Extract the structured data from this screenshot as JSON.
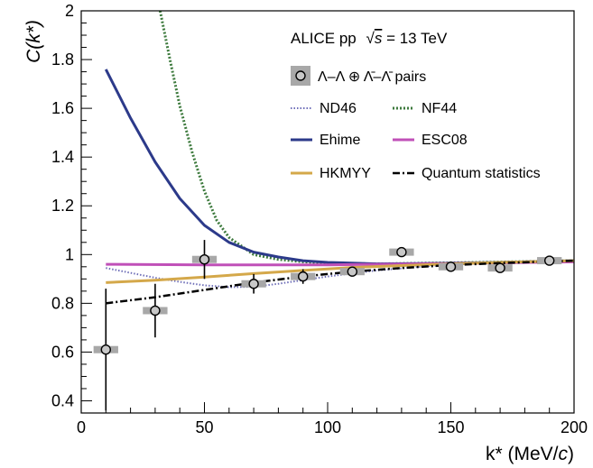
{
  "chart_data": {
    "type": "line",
    "title": "",
    "xlabel_main": "k* (MeV/",
    "xlabel_italic": "c",
    "xlabel_end": ")",
    "ylabel": "C(k*)",
    "xlim": [
      0,
      200
    ],
    "ylim": [
      0.35,
      2.0
    ],
    "x_ticks": [
      0,
      50,
      100,
      150,
      200
    ],
    "y_ticks": [
      0.4,
      0.6,
      0.8,
      1,
      1.2,
      1.4,
      1.6,
      1.8,
      2
    ],
    "y_tick_labels": [
      "0.4",
      "0.6",
      "0.8",
      "1",
      "1.2",
      "1.4",
      "1.6",
      "1.8",
      "2"
    ],
    "grid": false,
    "legend_position": "top-right",
    "annotation": {
      "experiment": "ALICE pp",
      "energy_prefix": "√",
      "energy_var": "s",
      "energy_suffix": " = 13 TeV"
    },
    "data_series": {
      "name": "Λ–Λ ⊕ Λ̄–Λ̄ pairs",
      "points": [
        {
          "x": 10,
          "y": 0.61,
          "xerr": 5,
          "yerr": 0.25
        },
        {
          "x": 30,
          "y": 0.77,
          "xerr": 5,
          "yerr": 0.11
        },
        {
          "x": 50,
          "y": 0.98,
          "xerr": 5,
          "yerr": 0.08
        },
        {
          "x": 70,
          "y": 0.88,
          "xerr": 5,
          "yerr": 0.04
        },
        {
          "x": 90,
          "y": 0.91,
          "xerr": 5,
          "yerr": 0.03
        },
        {
          "x": 110,
          "y": 0.93,
          "xerr": 5,
          "yerr": 0.02
        },
        {
          "x": 130,
          "y": 1.01,
          "xerr": 5,
          "yerr": 0.02
        },
        {
          "x": 150,
          "y": 0.95,
          "xerr": 5,
          "yerr": 0.02
        },
        {
          "x": 170,
          "y": 0.945,
          "xerr": 5,
          "yerr": 0.015
        },
        {
          "x": 190,
          "y": 0.975,
          "xerr": 5,
          "yerr": 0.015
        }
      ]
    },
    "series": [
      {
        "name": "ND46",
        "color": "#6f6fb8",
        "dash": "dotted",
        "x": [
          10,
          20,
          30,
          40,
          50,
          60,
          70,
          80,
          100,
          120,
          140,
          160,
          180,
          200
        ],
        "y": [
          0.945,
          0.925,
          0.905,
          0.888,
          0.874,
          0.866,
          0.868,
          0.88,
          0.91,
          0.935,
          0.952,
          0.963,
          0.97,
          0.975
        ]
      },
      {
        "name": "NF44",
        "color": "#3d7a3d",
        "dash": "dotted-dense",
        "x": [
          32,
          36,
          40,
          45,
          50,
          55,
          60,
          70,
          80,
          90,
          100,
          120,
          140,
          160,
          200
        ],
        "y": [
          2.0,
          1.8,
          1.61,
          1.42,
          1.26,
          1.14,
          1.07,
          1.0,
          0.98,
          0.97,
          0.965,
          0.962,
          0.965,
          0.968,
          0.975
        ]
      },
      {
        "name": "Ehime",
        "color": "#2c3a8a",
        "dash": "solid",
        "x": [
          10,
          20,
          30,
          40,
          50,
          60,
          70,
          80,
          90,
          100,
          120,
          140,
          160,
          180,
          200
        ],
        "y": [
          1.76,
          1.56,
          1.38,
          1.23,
          1.12,
          1.05,
          1.01,
          0.99,
          0.975,
          0.968,
          0.962,
          0.963,
          0.966,
          0.97,
          0.975
        ]
      },
      {
        "name": "ESC08",
        "color": "#c050b8",
        "dash": "solid",
        "x": [
          10,
          50,
          100,
          150,
          200
        ],
        "y": [
          0.96,
          0.958,
          0.958,
          0.963,
          0.97
        ]
      },
      {
        "name": "HKMYY",
        "color": "#d4a84a",
        "dash": "solid",
        "x": [
          10,
          30,
          50,
          70,
          90,
          110,
          130,
          150,
          170,
          200
        ],
        "y": [
          0.885,
          0.895,
          0.908,
          0.922,
          0.935,
          0.947,
          0.955,
          0.962,
          0.968,
          0.975
        ]
      },
      {
        "name": "Quantum statistics",
        "color": "#000000",
        "dash": "dashdot",
        "x": [
          10,
          30,
          50,
          70,
          90,
          110,
          130,
          150,
          170,
          200
        ],
        "y": [
          0.8,
          0.825,
          0.855,
          0.885,
          0.91,
          0.93,
          0.945,
          0.957,
          0.965,
          0.975
        ]
      }
    ]
  }
}
